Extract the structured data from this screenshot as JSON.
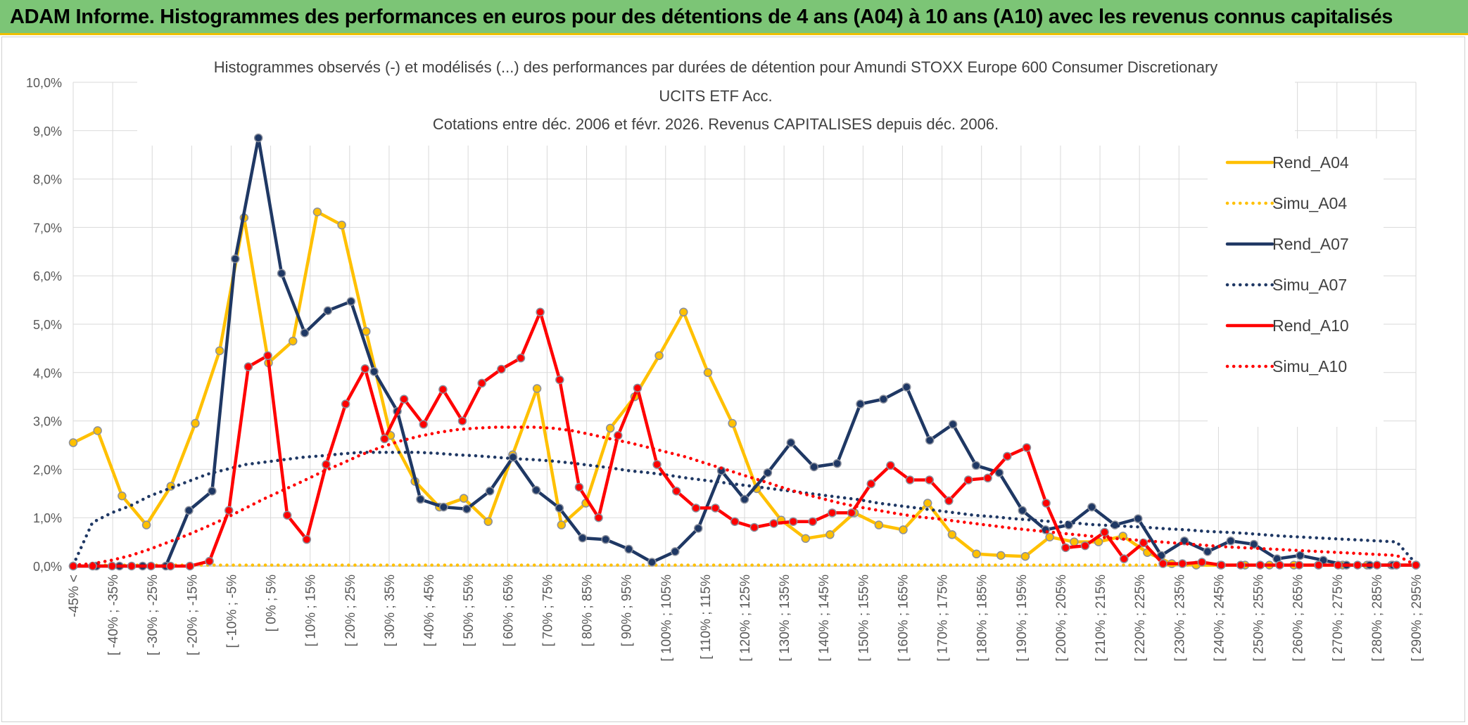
{
  "banner": {
    "title": "ADAM Informe. Histogrammes des performances en euros pour des détentions de 4 ans (A04) à 10 ans (A10) avec les revenus connus capitalisés",
    "bg_color": "#7cc576",
    "accent_color": "#f0c000"
  },
  "chart_data": {
    "type": "line",
    "title": [
      "Histogrammes observés (-) et modélisés (...) des performances par durées de détention pour Amundi STOXX Europe 600 Consumer Discretionary",
      "UCITS ETF Acc.",
      "Cotations entre déc. 2006 et févr. 2026. Revenus CAPITALISES depuis déc. 2006."
    ],
    "ylim": [
      0,
      10
    ],
    "y_ticks": [
      "0,0%",
      "1,0%",
      "2,0%",
      "3,0%",
      "4,0%",
      "5,0%",
      "6,0%",
      "7,0%",
      "8,0%",
      "9,0%",
      "10,0%"
    ],
    "x_labels": [
      "-45% <",
      "[ -40% ; -35%",
      "[ -30% ; -25%",
      "[ -20% ; -15%",
      "[ -10% ; -5%",
      "[ 0% ; 5%",
      "[ 10% ; 15%",
      "[ 20% ; 25%",
      "[ 30% ; 35%",
      "[ 40% ; 45%",
      "[ 50% ; 55%",
      "[ 60% ; 65%",
      "[ 70% ; 75%",
      "[ 80% ; 85%",
      "[ 90% ; 95%",
      "[ 100% ; 105%",
      "[ 110% ; 115%",
      "[ 120% ; 125%",
      "[ 130% ; 135%",
      "[ 140% ; 145%",
      "[ 150% ; 155%",
      "[ 160% ; 165%",
      "[ 170% ; 175%",
      "[ 180% ; 185%",
      "[ 190% ; 195%",
      "[ 200% ; 205%",
      "[ 210% ; 215%",
      "[ 220% ; 225%",
      "[ 230% ; 235%",
      "[ 240% ; 245%",
      "[ 250% ; 255%",
      "[ 260% ; 265%",
      "[ 270% ; 275%",
      "[ 280% ; 285%",
      "[ 290% ; 295%"
    ],
    "legend_position": "right",
    "series": [
      {
        "name": "Rend_A04",
        "style": "solid",
        "color": "#ffc000",
        "values": [
          2.55,
          2.8,
          1.45,
          0.85,
          1.65,
          2.95,
          4.45,
          7.2,
          4.2,
          4.65,
          7.32,
          7.05,
          4.85,
          2.7,
          1.75,
          1.22,
          1.4,
          0.92,
          2.3,
          3.67,
          0.85,
          1.3,
          2.85,
          3.5,
          4.35,
          5.25,
          4.0,
          2.95,
          1.6,
          0.95,
          0.57,
          0.65,
          1.1,
          0.85,
          0.75,
          1.3,
          0.65,
          0.25,
          0.22,
          0.2,
          0.6,
          0.5,
          0.5,
          0.62,
          0.28,
          0.05,
          0.02,
          0.02,
          0.02,
          0.02,
          0.02,
          0.02,
          0.02,
          0.02,
          0.02,
          0.02
        ]
      },
      {
        "name": "Simu_A04",
        "style": "dotted",
        "color": "#ffc000",
        "values": [
          0.02,
          0.02,
          0.02,
          0.02,
          0.02,
          0.02,
          0.02,
          0.02,
          0.02,
          0.02,
          0.02,
          0.02,
          0.02,
          0.02,
          0.02,
          0.02,
          0.02,
          0.02,
          0.02,
          0.02,
          0.02,
          0.02,
          0.02,
          0.02,
          0.02,
          0.02,
          0.02,
          0.02,
          0.02,
          0.02,
          0.02,
          0.02,
          0.02,
          0.02,
          0.02,
          0.02,
          0.02,
          0.02,
          0.02,
          0.02,
          0.02,
          0.02,
          0.02,
          0.02,
          0.02,
          0.02,
          0.02,
          0.02,
          0.02,
          0.02,
          0.02,
          0.02,
          0.02,
          0.02,
          0.02,
          0.02,
          0.02,
          0.02,
          0.02,
          0.02,
          0.02,
          0.02,
          0.02,
          0.02,
          0.02,
          0.02,
          0.02,
          0.02,
          0.02,
          0.02,
          0.02
        ]
      },
      {
        "name": "Rend_A07",
        "style": "solid",
        "color": "#1f3864",
        "values": [
          0.0,
          0.0,
          0.0,
          0.0,
          0.0,
          1.15,
          1.55,
          6.35,
          8.85,
          6.05,
          4.82,
          5.28,
          5.47,
          4.02,
          3.2,
          1.38,
          1.22,
          1.18,
          1.55,
          2.25,
          1.57,
          1.2,
          0.58,
          0.55,
          0.35,
          0.08,
          0.3,
          0.78,
          1.97,
          1.38,
          1.93,
          2.55,
          2.05,
          2.12,
          3.35,
          3.45,
          3.7,
          2.6,
          2.93,
          2.08,
          1.93,
          1.15,
          0.75,
          0.85,
          1.22,
          0.85,
          0.98,
          0.22,
          0.52,
          0.3,
          0.52,
          0.45,
          0.15,
          0.22,
          0.12,
          0.02,
          0.02,
          0.02,
          0.02
        ]
      },
      {
        "name": "Simu_A07",
        "style": "dotted",
        "color": "#1f3864",
        "values": [
          0.02,
          0.9,
          1.1,
          1.25,
          1.45,
          1.6,
          1.75,
          1.9,
          2.0,
          2.1,
          2.15,
          2.2,
          2.25,
          2.28,
          2.32,
          2.35,
          2.35,
          2.35,
          2.35,
          2.33,
          2.3,
          2.28,
          2.25,
          2.22,
          2.2,
          2.17,
          2.13,
          2.08,
          2.03,
          1.97,
          1.93,
          1.88,
          1.82,
          1.77,
          1.72,
          1.67,
          1.62,
          1.57,
          1.52,
          1.47,
          1.42,
          1.37,
          1.3,
          1.25,
          1.2,
          1.15,
          1.1,
          1.05,
          1.02,
          0.98,
          0.95,
          0.92,
          0.9,
          0.86,
          0.84,
          0.82,
          0.8,
          0.77,
          0.75,
          0.72,
          0.7,
          0.68,
          0.65,
          0.62,
          0.6,
          0.58,
          0.56,
          0.54,
          0.52,
          0.5,
          0.05
        ]
      },
      {
        "name": "Rend_A10",
        "style": "solid",
        "color": "#ff0000",
        "values": [
          0.0,
          0.0,
          0.0,
          0.0,
          0.0,
          0.0,
          0.0,
          0.1,
          1.15,
          4.12,
          4.35,
          1.05,
          0.55,
          2.1,
          3.35,
          4.08,
          2.63,
          3.45,
          2.93,
          3.65,
          3.0,
          3.78,
          4.07,
          4.3,
          5.25,
          3.85,
          1.63,
          1.0,
          2.7,
          3.68,
          2.1,
          1.55,
          1.2,
          1.2,
          0.92,
          0.8,
          0.88,
          0.92,
          0.92,
          1.1,
          1.1,
          1.7,
          2.08,
          1.78,
          1.78,
          1.35,
          1.78,
          1.82,
          2.27,
          2.45,
          1.3,
          0.38,
          0.42,
          0.7,
          0.15,
          0.48,
          0.05,
          0.05,
          0.08,
          0.02,
          0.02,
          0.02,
          0.02,
          0.02,
          0.02,
          0.02,
          0.02,
          0.02,
          0.02,
          0.02
        ]
      },
      {
        "name": "Simu_A10",
        "style": "dotted",
        "color": "#ff0000",
        "values": [
          0.02,
          0.05,
          0.12,
          0.22,
          0.35,
          0.5,
          0.65,
          0.82,
          1.0,
          1.2,
          1.4,
          1.58,
          1.76,
          1.95,
          2.12,
          2.3,
          2.45,
          2.58,
          2.68,
          2.76,
          2.82,
          2.85,
          2.87,
          2.87,
          2.87,
          2.85,
          2.8,
          2.72,
          2.63,
          2.55,
          2.45,
          2.35,
          2.25,
          2.12,
          2.0,
          1.87,
          1.75,
          1.62,
          1.5,
          1.4,
          1.3,
          1.22,
          1.15,
          1.08,
          1.02,
          0.98,
          0.93,
          0.88,
          0.83,
          0.78,
          0.74,
          0.7,
          0.66,
          0.62,
          0.58,
          0.55,
          0.52,
          0.49,
          0.46,
          0.43,
          0.4,
          0.38,
          0.36,
          0.34,
          0.32,
          0.3,
          0.28,
          0.26,
          0.24,
          0.22,
          0.02
        ]
      }
    ]
  }
}
